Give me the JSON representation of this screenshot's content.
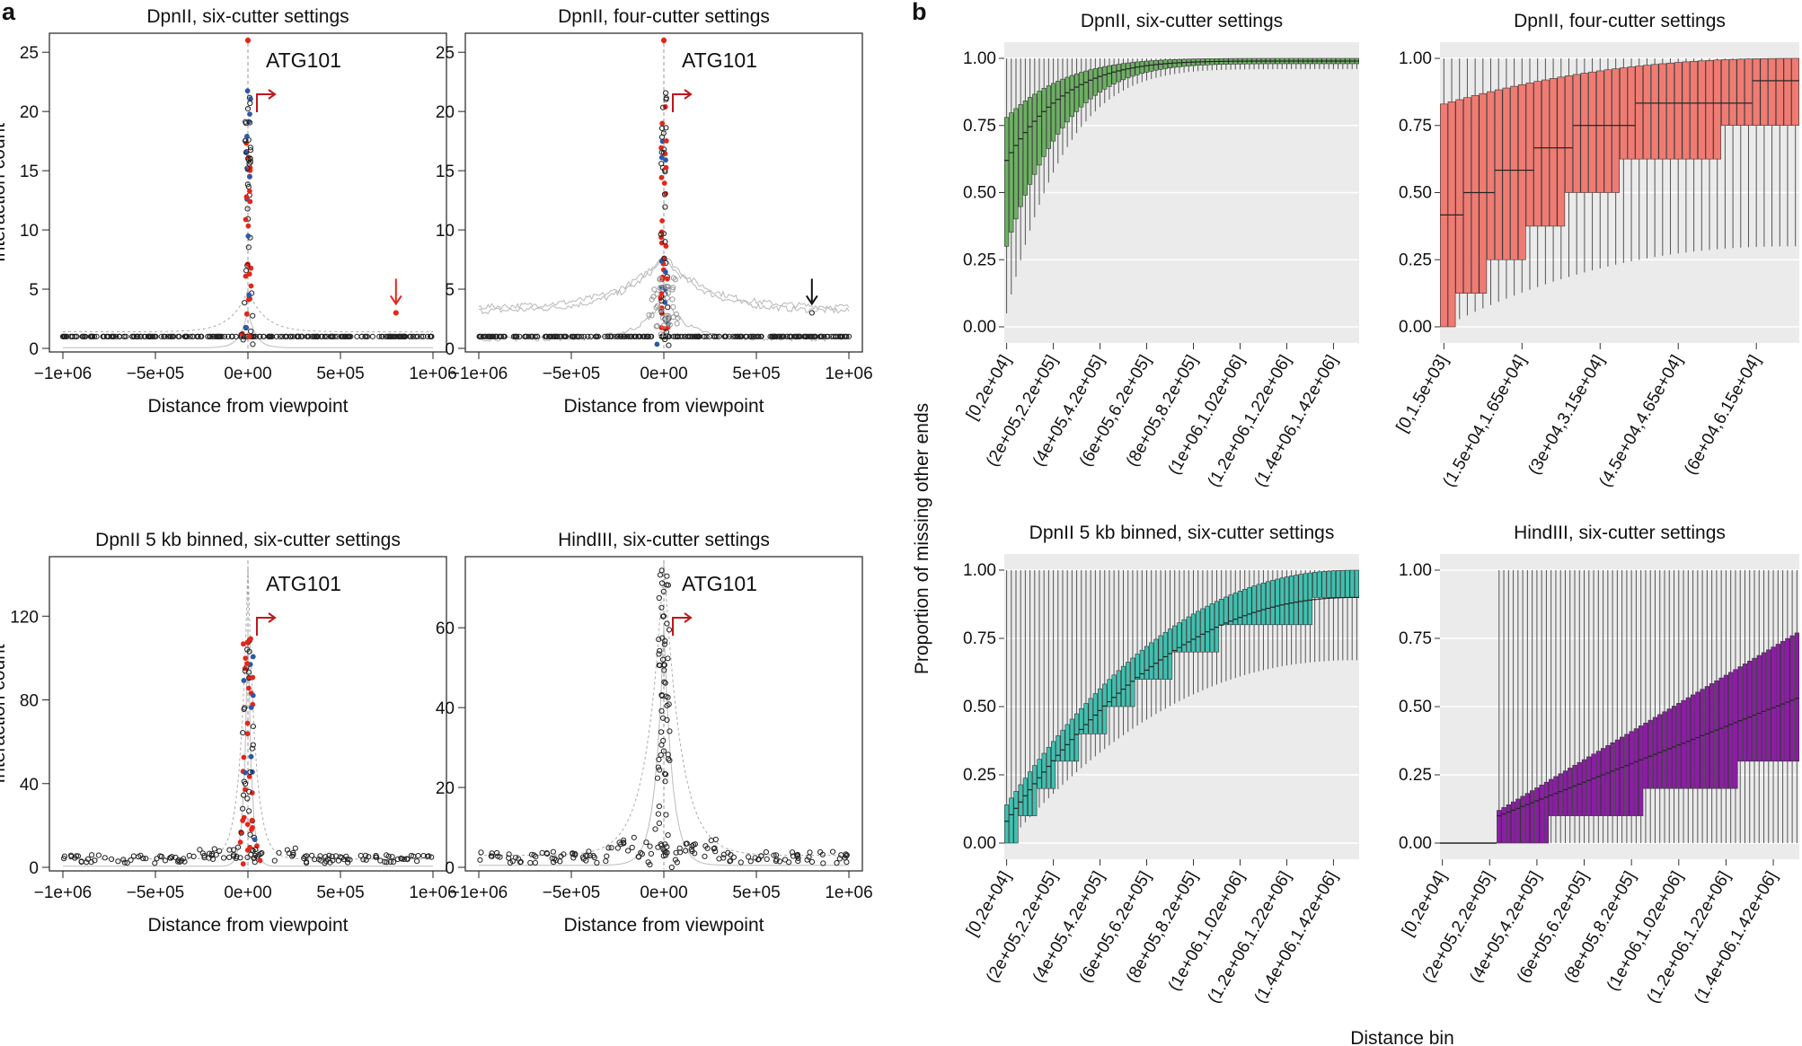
{
  "figure": {
    "panel_a_label": "a",
    "panel_b_label": "b",
    "panel_b_ylabel": "Proportion of missing other ends",
    "panel_b_xlabel": "Distance bin",
    "colors": {
      "significant_red": "#e4261b",
      "significant_blue": "#2c5aa8",
      "arrow_red": "#c0161b",
      "green": "#6db063",
      "salmon": "#ef7b72",
      "teal": "#40c0b0",
      "purple": "#8a1ea3",
      "grid_bg": "#ebebeb"
    }
  },
  "chart_data": [
    {
      "id": "a1",
      "type": "scatter",
      "title": "DpnII, six-cutter settings",
      "xlabel": "Distance from viewpoint",
      "ylabel": "Interaction count",
      "xlim": [
        -1000000,
        1000000
      ],
      "ylim": [
        0,
        26
      ],
      "xticks": [
        "−1e+06",
        "−5e+05",
        "0e+00",
        "5e+05",
        "1e+06"
      ],
      "yticks": [
        0,
        5,
        10,
        15,
        20,
        25
      ],
      "annotation": "ATG101",
      "marker_note": "red arrow at ~8e+05 highlighting a significant distal interaction",
      "marked_point": {
        "x": 800000,
        "y": 3
      }
    },
    {
      "id": "a2",
      "type": "scatter",
      "title": "DpnII, four-cutter settings",
      "xlabel": "Distance from viewpoint",
      "ylabel": "",
      "xlim": [
        -1000000,
        1000000
      ],
      "ylim": [
        0,
        26
      ],
      "xticks": [
        "−1e+06",
        "−5e+05",
        "0e+00",
        "5e+05",
        "1e+06"
      ],
      "yticks": [
        0,
        5,
        10,
        15,
        20,
        25
      ],
      "annotation": "ATG101",
      "marker_note": "black arrow at ~8e+05, interaction not called",
      "marked_point": {
        "x": 800000,
        "y": 3
      }
    },
    {
      "id": "a3",
      "type": "scatter",
      "title": "DpnII 5 kb binned, six-cutter settings",
      "xlabel": "Distance from viewpoint",
      "ylabel": "Interaction count",
      "xlim": [
        -1000000,
        1000000
      ],
      "ylim": [
        0,
        145
      ],
      "xticks": [
        "−1e+06",
        "−5e+05",
        "0e+00",
        "5e+05",
        "1e+06"
      ],
      "yticks": [
        0,
        40,
        80,
        120
      ],
      "annotation": "ATG101"
    },
    {
      "id": "a4",
      "type": "scatter",
      "title": "HindIII, six-cutter settings",
      "xlabel": "Distance from viewpoint",
      "ylabel": "",
      "xlim": [
        -1000000,
        1000000
      ],
      "ylim": [
        0,
        76
      ],
      "xticks": [
        "−1e+06",
        "−5e+05",
        "0e+00",
        "5e+05",
        "1e+06"
      ],
      "yticks": [
        0,
        20,
        40,
        60
      ],
      "annotation": "ATG101"
    },
    {
      "id": "b1",
      "type": "boxplot",
      "title": "DpnII, six-cutter settings",
      "color": "#6db063",
      "n_bins": 76,
      "ylim": [
        0,
        1
      ],
      "yticks": [
        "0.00",
        "0.25",
        "0.50",
        "0.75",
        "1.00"
      ],
      "xticklabels": [
        "[0,2e+04]",
        "(2e+05,2.2e+05]",
        "(4e+05,4.2e+05]",
        "(6e+05,6.2e+05]",
        "(8e+05,8.2e+05]",
        "(1e+06,1.02e+06]",
        "(1.2e+06,1.22e+06]",
        "(1.4e+06,1.42e+06]"
      ],
      "median_start": 0.62,
      "median_end": 0.99,
      "q1_start": 0.3,
      "q1_end": 0.98,
      "q3_start": 0.78,
      "q3_end": 1.0,
      "whisker_low_start": 0.05,
      "whisker_low_end": 0.96
    },
    {
      "id": "b2",
      "type": "boxplot",
      "title": "DpnII, four-cutter settings",
      "color": "#ef7b72",
      "n_bins": 46,
      "ylim": [
        0,
        1
      ],
      "yticks": [
        "0.00",
        "0.25",
        "0.50",
        "0.75",
        "1.00"
      ],
      "xticklabels": [
        "[0,1.5e+03]",
        "(1.5e+04,1.65e+04]",
        "(3e+04,3.15e+04]",
        "(4.5e+04,4.65e+04]",
        "(6e+04,6.15e+04]"
      ],
      "median_start": 0.4,
      "median_end": 0.88,
      "q1_start": 0.0,
      "q1_end": 0.71,
      "q3_start": 0.83,
      "q3_end": 1.0,
      "whisker_low_start": 0.0,
      "whisker_low_end": 0.3
    },
    {
      "id": "b3",
      "type": "boxplot",
      "title": "DpnII 5 kb binned, six-cutter settings",
      "color": "#40c0b0",
      "n_bins": 76,
      "ylim": [
        0,
        1
      ],
      "yticks": [
        "0.00",
        "0.25",
        "0.50",
        "0.75",
        "1.00"
      ],
      "xticklabels": [
        "[0,2e+04]",
        "(2e+05,2.2e+05]",
        "(4e+05,4.2e+05]",
        "(6e+05,6.2e+05]",
        "(8e+05,8.2e+05]",
        "(1e+06,1.02e+06]",
        "(1.2e+06,1.22e+06]",
        "(1.4e+06,1.42e+06]"
      ],
      "median_start": 0.08,
      "median_end": 0.9,
      "q1_start": 0.0,
      "q1_end": 0.86,
      "q3_start": 0.14,
      "q3_end": 1.0,
      "whisker_low_start": 0.0,
      "whisker_low_end": 0.67
    },
    {
      "id": "b4",
      "type": "boxplot",
      "title": "HindIII, six-cutter settings",
      "color": "#8a1ea3",
      "n_bins": 76,
      "ylim": [
        0,
        1
      ],
      "yticks": [
        "0.00",
        "0.25",
        "0.50",
        "0.75",
        "1.00"
      ],
      "xticklabels": [
        "[0,2e+04]",
        "(2e+05,2.2e+05]",
        "(4e+05,4.2e+05]",
        "(6e+05,6.2e+05]",
        "(8e+05,8.2e+05]",
        "(1e+06,1.02e+06]",
        "(1.2e+06,1.22e+06]",
        "(1.4e+06,1.42e+06]"
      ],
      "zero_bins": 12,
      "median_start": 0.1,
      "median_end": 0.53,
      "q1_start": 0.0,
      "q1_end": 0.31,
      "q3_start": 0.12,
      "q3_end": 0.77,
      "whisker_low_start": 0.0,
      "whisker_low_end": 0.0
    }
  ]
}
